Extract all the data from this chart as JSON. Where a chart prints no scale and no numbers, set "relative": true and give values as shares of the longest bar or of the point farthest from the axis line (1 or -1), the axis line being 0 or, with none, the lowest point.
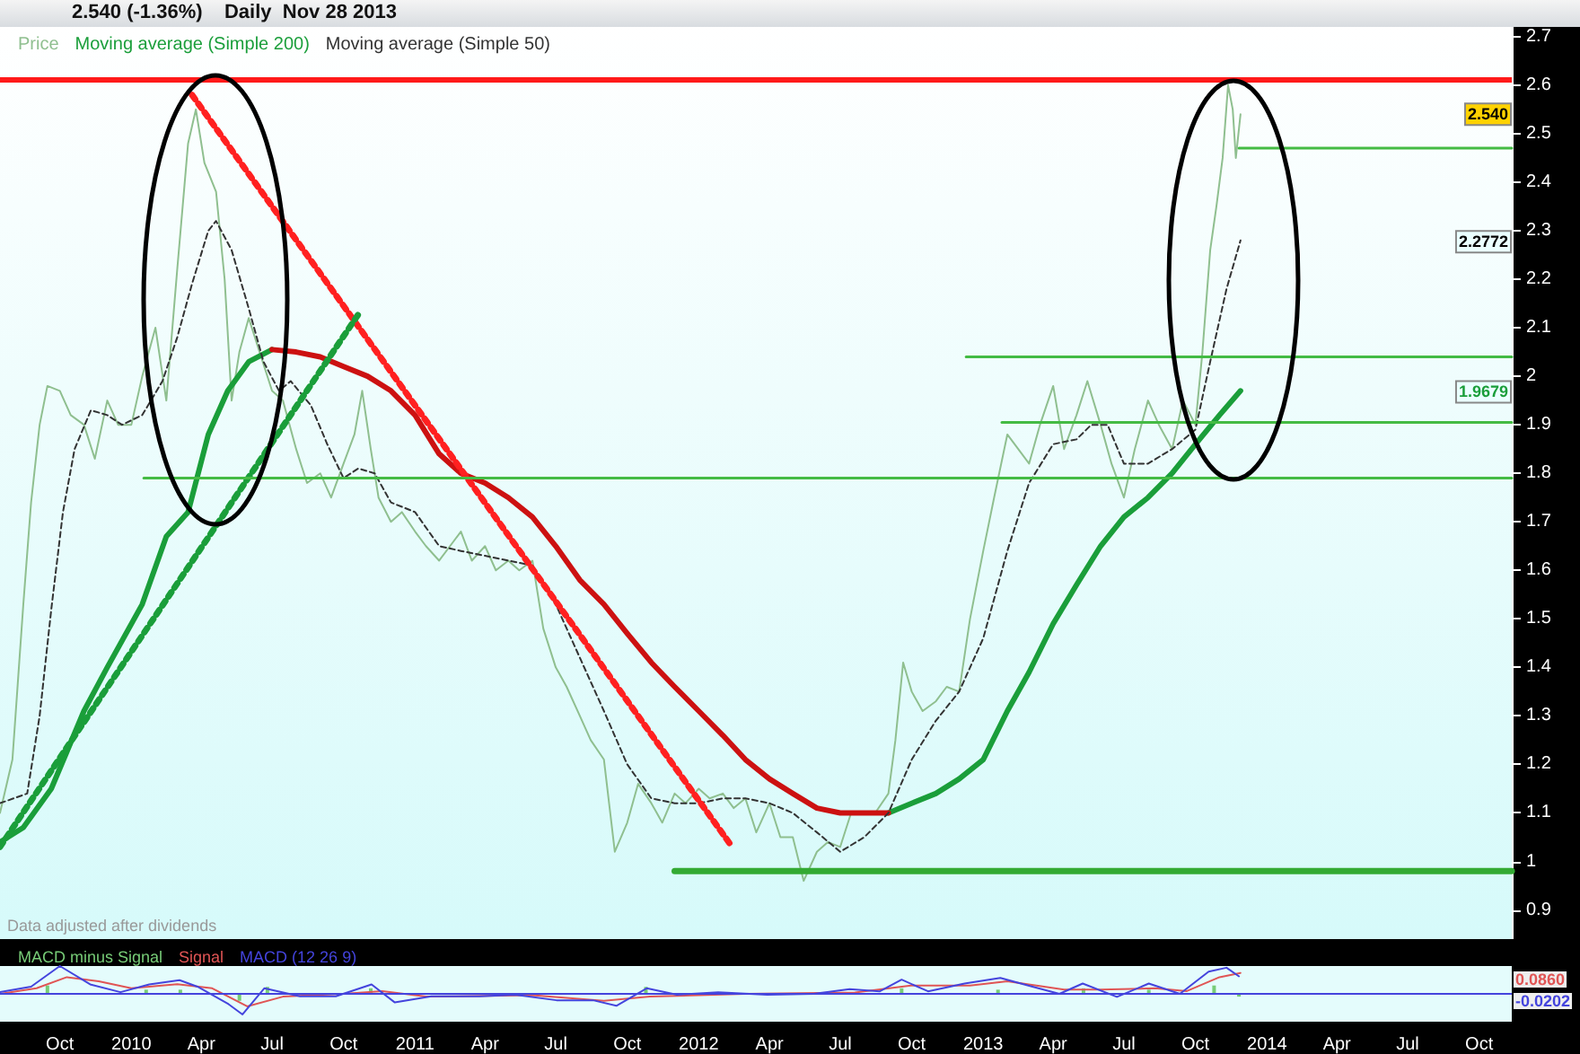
{
  "chart_data": [
    {
      "type": "line",
      "title": "2.540 (-1.36%)    Daily  Nov 28 2013",
      "legend": "top left",
      "tick_labels": "y",
      "xlim": [
        "2009-07-16",
        "2014-11-12"
      ],
      "ylim": [
        0.84,
        2.72
      ],
      "yticks": [
        0.9,
        1,
        1.1,
        1.2,
        1.3,
        1.4,
        1.5,
        1.6,
        1.7,
        1.8,
        1.9,
        2,
        2.1,
        2.2,
        2.3,
        2.4,
        2.5,
        2.6,
        2.7
      ],
      "series": [
        {
          "name": "Price",
          "color": "#8fbf8f",
          "x": [
            "2009-07-16",
            "2009-08-01",
            "2009-08-15",
            "2009-08-25",
            "2009-09-05",
            "2009-09-15",
            "2009-10-01",
            "2009-10-15",
            "2009-11-01",
            "2009-11-15",
            "2009-12-01",
            "2009-12-15",
            "2010-01-01",
            "2010-01-15",
            "2010-02-01",
            "2010-02-15",
            "2010-03-01",
            "2010-03-15",
            "2010-03-25",
            "2010-04-05",
            "2010-04-20",
            "2010-05-01",
            "2010-05-10",
            "2010-05-20",
            "2010-06-01",
            "2010-06-15",
            "2010-07-01",
            "2010-07-15",
            "2010-08-01",
            "2010-08-15",
            "2010-09-01",
            "2010-09-15",
            "2010-10-01",
            "2010-10-15",
            "2010-10-25",
            "2010-11-05",
            "2010-11-15",
            "2010-12-01",
            "2010-12-15",
            "2011-01-01",
            "2011-01-15",
            "2011-02-01",
            "2011-02-15",
            "2011-03-01",
            "2011-03-15",
            "2011-04-01",
            "2011-04-15",
            "2011-05-01",
            "2011-05-15",
            "2011-06-01",
            "2011-06-15",
            "2011-07-01",
            "2011-07-15",
            "2011-08-01",
            "2011-08-15",
            "2011-09-01",
            "2011-09-15",
            "2011-10-01",
            "2011-10-15",
            "2011-11-01",
            "2011-11-15",
            "2011-12-01",
            "2011-12-15",
            "2012-01-01",
            "2012-01-15",
            "2012-02-01",
            "2012-02-15",
            "2012-03-01",
            "2012-03-15",
            "2012-04-01",
            "2012-04-15",
            "2012-05-01",
            "2012-05-15",
            "2012-06-01",
            "2012-06-15",
            "2012-07-01",
            "2012-07-15",
            "2012-08-01",
            "2012-08-15",
            "2012-09-01",
            "2012-09-10",
            "2012-09-20",
            "2012-10-01",
            "2012-10-15",
            "2012-11-01",
            "2012-11-15",
            "2012-12-01",
            "2012-12-15",
            "2013-01-01",
            "2013-01-15",
            "2013-02-01",
            "2013-02-15",
            "2013-03-01",
            "2013-03-15",
            "2013-04-01",
            "2013-04-15",
            "2013-05-01",
            "2013-05-15",
            "2013-06-01",
            "2013-06-15",
            "2013-07-01",
            "2013-07-15",
            "2013-08-01",
            "2013-08-15",
            "2013-09-01",
            "2013-09-15",
            "2013-10-01",
            "2013-10-10",
            "2013-10-20",
            "2013-10-28",
            "2013-11-05",
            "2013-11-12",
            "2013-11-18",
            "2013-11-22",
            "2013-11-28"
          ],
          "values": [
            1.1,
            1.21,
            1.53,
            1.74,
            1.9,
            1.98,
            1.97,
            1.92,
            1.9,
            1.83,
            1.95,
            1.9,
            1.9,
            2.0,
            2.1,
            1.95,
            2.22,
            2.48,
            2.55,
            2.44,
            2.38,
            2.2,
            1.95,
            2.05,
            2.12,
            2.05,
            1.97,
            1.95,
            1.85,
            1.78,
            1.8,
            1.75,
            1.82,
            1.88,
            1.97,
            1.85,
            1.75,
            1.7,
            1.72,
            1.68,
            1.65,
            1.62,
            1.65,
            1.68,
            1.62,
            1.65,
            1.6,
            1.62,
            1.6,
            1.62,
            1.48,
            1.4,
            1.36,
            1.3,
            1.25,
            1.21,
            1.02,
            1.08,
            1.16,
            1.12,
            1.08,
            1.14,
            1.12,
            1.15,
            1.13,
            1.14,
            1.11,
            1.13,
            1.06,
            1.12,
            1.05,
            1.05,
            0.96,
            1.02,
            1.04,
            1.03,
            1.1,
            1.1,
            1.1,
            1.14,
            1.25,
            1.41,
            1.35,
            1.31,
            1.33,
            1.36,
            1.35,
            1.5,
            1.64,
            1.75,
            1.88,
            1.85,
            1.82,
            1.9,
            1.98,
            1.85,
            1.92,
            1.99,
            1.9,
            1.82,
            1.75,
            1.85,
            1.95,
            1.9,
            1.85,
            1.95,
            1.9,
            2.05,
            2.26,
            2.35,
            2.45,
            2.6,
            2.55,
            2.45,
            2.54
          ]
        },
        {
          "name": "Moving average (Simple 200)",
          "color": "#1a9e3a",
          "x": [
            "2009-07-16",
            "2009-08-15",
            "2009-09-20",
            "2009-11-01",
            "2009-12-01",
            "2010-01-15",
            "2010-02-15",
            "2010-03-15",
            "2010-04-10",
            "2010-05-05",
            "2010-06-01",
            "2010-07-01",
            "2010-08-01",
            "2012-08-01",
            "2012-09-01",
            "2012-10-01",
            "2012-11-01",
            "2012-12-01",
            "2013-01-01",
            "2013-02-01",
            "2013-03-01",
            "2013-04-01",
            "2013-05-01",
            "2013-06-01",
            "2013-07-01",
            "2013-08-01",
            "2013-09-01",
            "2013-10-01",
            "2013-11-01",
            "2013-11-28"
          ],
          "values": [
            1.04,
            1.07,
            1.15,
            1.31,
            1.4,
            1.53,
            1.67,
            1.72,
            1.88,
            1.97,
            2.03,
            2.055,
            null,
            null,
            1.1,
            1.12,
            1.14,
            1.17,
            1.21,
            1.31,
            1.39,
            1.49,
            1.57,
            1.65,
            1.71,
            1.75,
            1.8,
            1.86,
            1.92,
            1.97
          ]
        },
        {
          "color": "#cc1111",
          "x": [
            "2010-07-01",
            "2010-08-01",
            "2010-09-01",
            "2010-10-01",
            "2010-11-01",
            "2010-12-01",
            "2011-01-01",
            "2011-02-01",
            "2011-03-01",
            "2011-04-01",
            "2011-05-01",
            "2011-06-01",
            "2011-07-01",
            "2011-08-01",
            "2011-09-01",
            "2011-10-01",
            "2011-11-01",
            "2011-12-01",
            "2012-01-01",
            "2012-02-01",
            "2012-03-01",
            "2012-04-01",
            "2012-05-01",
            "2012-06-01",
            "2012-07-01",
            "2012-08-01",
            "2012-09-01"
          ],
          "values": [
            2.055,
            2.05,
            2.04,
            2.02,
            2.0,
            1.97,
            1.92,
            1.84,
            1.8,
            1.78,
            1.75,
            1.71,
            1.65,
            1.58,
            1.53,
            1.47,
            1.41,
            1.36,
            1.31,
            1.26,
            1.21,
            1.17,
            1.14,
            1.11,
            1.1,
            1.1,
            1.1
          ]
        },
        {
          "name": "Moving average (Simple 50)",
          "color": "#333333",
          "line_style": "dashed",
          "x": [
            "2009-07-16",
            "2009-08-20",
            "2009-09-05",
            "2009-09-20",
            "2009-10-05",
            "2009-10-20",
            "2009-11-10",
            "2009-12-01",
            "2009-12-20",
            "2010-01-15",
            "2010-02-10",
            "2010-03-01",
            "2010-03-20",
            "2010-04-10",
            "2010-04-20",
            "2010-05-10",
            "2010-06-01",
            "2010-06-20",
            "2010-07-10",
            "2010-07-25",
            "2010-08-20",
            "2010-09-10",
            "2010-10-01",
            "2010-10-20",
            "2010-11-10",
            "2010-12-01",
            "2011-01-01",
            "2011-02-01",
            "2011-03-01",
            "2011-04-01",
            "2011-05-01",
            "2011-06-01",
            "2011-07-01",
            "2011-08-01",
            "2011-09-01",
            "2011-10-01",
            "2011-11-01",
            "2011-12-01",
            "2012-01-01",
            "2012-02-01",
            "2012-03-01",
            "2012-04-01",
            "2012-05-01",
            "2012-06-01",
            "2012-07-01",
            "2012-08-01",
            "2012-09-01",
            "2012-10-01",
            "2012-11-01",
            "2012-12-01",
            "2013-01-01",
            "2013-02-01",
            "2013-03-01",
            "2013-04-01",
            "2013-05-01",
            "2013-05-20",
            "2013-06-10",
            "2013-07-01",
            "2013-08-01",
            "2013-09-01",
            "2013-10-01",
            "2013-10-20",
            "2013-11-10",
            "2013-11-28"
          ],
          "values": [
            1.12,
            1.14,
            1.3,
            1.52,
            1.72,
            1.85,
            1.93,
            1.92,
            1.9,
            1.92,
            1.99,
            2.08,
            2.19,
            2.3,
            2.32,
            2.26,
            2.14,
            2.03,
            1.97,
            1.99,
            1.94,
            1.86,
            1.79,
            1.81,
            1.8,
            1.74,
            1.72,
            1.65,
            1.64,
            1.63,
            1.62,
            1.61,
            1.53,
            1.42,
            1.31,
            1.2,
            1.13,
            1.12,
            1.12,
            1.13,
            1.13,
            1.12,
            1.1,
            1.06,
            1.02,
            1.05,
            1.1,
            1.21,
            1.29,
            1.35,
            1.46,
            1.64,
            1.78,
            1.86,
            1.87,
            1.9,
            1.9,
            1.82,
            1.82,
            1.85,
            1.89,
            2.03,
            2.18,
            2.28
          ]
        },
        {
          "color": "#ff2020",
          "line_style": "dotted",
          "x": [
            "2010-03-20",
            "2012-02-13"
          ],
          "values": [
            2.58,
            1.03
          ]
        },
        {
          "color": "#1a9e3a",
          "line_style": "dotted",
          "x": [
            "2009-07-16",
            "2010-10-21"
          ],
          "values": [
            1.03,
            2.13
          ]
        },
        {
          "color": "#44bb44",
          "x": [
            "2010-01-17",
            "2014-11-12"
          ],
          "values": [
            1.79,
            1.79
          ]
        },
        {
          "color": "#44bb44",
          "x": [
            "2012-12-10",
            "2014-11-12"
          ],
          "values": [
            2.04,
            2.04
          ]
        },
        {
          "color": "#44bb44",
          "x": [
            "2013-01-25",
            "2014-11-12"
          ],
          "values": [
            1.905,
            1.905
          ]
        },
        {
          "color": "#44bb44",
          "x": [
            "2013-11-26",
            "2014-11-12"
          ],
          "values": [
            2.47,
            2.47
          ]
        },
        {
          "color": "#33aa33",
          "x": [
            "2011-12-01",
            "2014-11-12"
          ],
          "values": [
            0.98,
            0.98
          ]
        }
      ],
      "ref_lines": [
        {
          "axis": "y",
          "value": 2.61,
          "color": "#ff1a1a"
        }
      ],
      "annotations": [
        {
          "text": "2.540",
          "y": 2.54
        },
        {
          "text": "2.2772",
          "y": 2.2772
        },
        {
          "text": "1.9679",
          "y": 1.9679
        },
        "Data adjusted after dividends"
      ]
    },
    {
      "type": "line",
      "relative": true,
      "legend": "top left",
      "tick_labels": "x",
      "xlim": [
        "2009-07-16",
        "2014-11-12"
      ],
      "xticks": [
        {
          "value": "2009-10-01",
          "label": "Oct"
        },
        {
          "value": "2010-01-01",
          "label": "2010"
        },
        {
          "value": "2010-04-01",
          "label": "Apr"
        },
        {
          "value": "2010-07-01",
          "label": "Jul"
        },
        {
          "value": "2010-10-01",
          "label": "Oct"
        },
        {
          "value": "2011-01-01",
          "label": "2011"
        },
        {
          "value": "2011-04-01",
          "label": "Apr"
        },
        {
          "value": "2011-07-01",
          "label": "Jul"
        },
        {
          "value": "2011-10-01",
          "label": "Oct"
        },
        {
          "value": "2012-01-01",
          "label": "2012"
        },
        {
          "value": "2012-04-01",
          "label": "Apr"
        },
        {
          "value": "2012-07-01",
          "label": "Jul"
        },
        {
          "value": "2012-10-01",
          "label": "Oct"
        },
        {
          "value": "2013-01-01",
          "label": "2013"
        },
        {
          "value": "2013-04-01",
          "label": "Apr"
        },
        {
          "value": "2013-07-01",
          "label": "Jul"
        },
        {
          "value": "2013-10-01",
          "label": "Oct"
        },
        {
          "value": "2014-01-01",
          "label": "2014"
        },
        {
          "value": "2014-04-01",
          "label": "Apr"
        },
        {
          "value": "2014-07-01",
          "label": "Jul"
        },
        {
          "value": "2014-10-01",
          "label": "Oct"
        }
      ],
      "series": [
        {
          "name": "MACD minus Signal",
          "type": "bar",
          "color": "#77cc77",
          "x": [
            "2009-09-15",
            "2010-01-20",
            "2010-03-05",
            "2010-05-20",
            "2010-06-25",
            "2010-11-05",
            "2011-10-25",
            "2012-09-18",
            "2013-01-20",
            "2013-05-10",
            "2013-08-02",
            "2013-10-25",
            "2013-11-26"
          ],
          "values": [
            0.3,
            0.15,
            0.15,
            -0.25,
            0.25,
            0.2,
            0.25,
            0.2,
            0.15,
            0.2,
            0.15,
            0.3,
            -0.1
          ]
        },
        {
          "name": "Signal",
          "color": "#e05555",
          "x": [
            "2009-07-16",
            "2009-09-01",
            "2009-10-10",
            "2009-11-20",
            "2010-01-01",
            "2010-03-01",
            "2010-04-15",
            "2010-05-30",
            "2010-07-15",
            "2010-09-30",
            "2010-11-20",
            "2011-01-15",
            "2011-06-01",
            "2011-09-01",
            "2011-10-30",
            "2012-03-01",
            "2012-07-20",
            "2012-09-30",
            "2012-12-15",
            "2013-02-01",
            "2013-04-15",
            "2013-06-01",
            "2013-08-10",
            "2013-09-20",
            "2013-11-01",
            "2013-11-28"
          ],
          "values": [
            0.0,
            0.2,
            0.6,
            0.45,
            0.2,
            0.35,
            0.2,
            -0.45,
            -0.1,
            0.0,
            0.1,
            -0.1,
            -0.05,
            -0.25,
            -0.1,
            0.0,
            0.05,
            0.3,
            0.3,
            0.45,
            0.15,
            0.15,
            0.2,
            0.1,
            0.6,
            0.75
          ]
        },
        {
          "name": "MACD (12 26 9)",
          "color": "#4444dd",
          "x": [
            "2009-07-16",
            "2009-08-25",
            "2009-10-01",
            "2009-11-09",
            "2009-12-18",
            "2010-01-24",
            "2010-03-04",
            "2010-03-27",
            "2010-05-06",
            "2010-05-24",
            "2010-06-21",
            "2010-08-06",
            "2010-09-21",
            "2010-11-06",
            "2010-12-06",
            "2011-01-22",
            "2011-03-25",
            "2011-05-10",
            "2011-07-02",
            "2011-08-18",
            "2011-09-17",
            "2011-10-26",
            "2011-12-04",
            "2012-01-26",
            "2012-03-29",
            "2012-05-28",
            "2012-07-13",
            "2012-08-21",
            "2012-09-18",
            "2012-10-22",
            "2012-12-08",
            "2013-01-23",
            "2013-03-01",
            "2013-04-09",
            "2013-05-09",
            "2013-06-22",
            "2013-08-02",
            "2013-09-11",
            "2013-10-18",
            "2013-11-10",
            "2013-11-26"
          ],
          "values": [
            0.06,
            0.26,
            1.0,
            0.34,
            0.06,
            0.34,
            0.49,
            0.26,
            -0.37,
            -0.74,
            0.2,
            -0.09,
            -0.09,
            0.34,
            -0.31,
            -0.09,
            -0.09,
            -0.03,
            -0.23,
            -0.23,
            -0.43,
            0.2,
            -0.03,
            0.06,
            -0.03,
            0.0,
            0.17,
            0.09,
            0.51,
            0.09,
            0.37,
            0.57,
            0.29,
            0.0,
            0.37,
            -0.11,
            0.37,
            0.0,
            0.8,
            0.94,
            0.63
          ]
        }
      ],
      "ref_lines": [
        {
          "axis": "y",
          "value": 0,
          "color": "#4444dd"
        }
      ],
      "annotations": [
        "0.0860",
        "-0.0202"
      ]
    }
  ]
}
